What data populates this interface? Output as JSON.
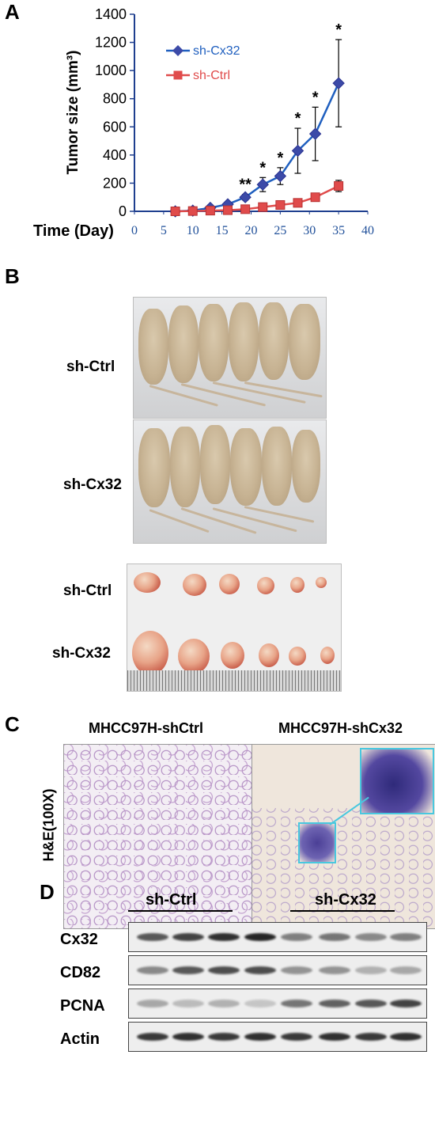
{
  "panels": {
    "a": "A",
    "b": "B",
    "c": "C",
    "d": "D"
  },
  "chart_data": {
    "type": "line",
    "ylabel": "Tumor size (mm³)",
    "xlabel": "Time (Day)",
    "xlim": [
      0,
      40
    ],
    "ylim": [
      0,
      1400
    ],
    "xticks": [
      "0",
      "5",
      "10",
      "15",
      "20",
      "25",
      "30",
      "35",
      "40"
    ],
    "yticks": [
      "0",
      "200",
      "400",
      "600",
      "800",
      "1000",
      "1200",
      "1400"
    ],
    "legend_position": "top-left",
    "x": [
      7,
      10,
      13,
      16,
      19,
      22,
      25,
      28,
      31,
      35
    ],
    "series": [
      {
        "name": "sh-Cx32",
        "color": "#1f5fbf",
        "marker": "diamond",
        "values": [
          0,
          5,
          25,
          50,
          100,
          190,
          250,
          430,
          550,
          910
        ],
        "errors": [
          0,
          3,
          8,
          12,
          20,
          50,
          60,
          160,
          190,
          310
        ]
      },
      {
        "name": "sh-Ctrl",
        "color": "#e04b4b",
        "marker": "square",
        "values": [
          0,
          2,
          5,
          8,
          15,
          30,
          45,
          60,
          100,
          180
        ],
        "errors": [
          0,
          1,
          2,
          3,
          5,
          8,
          10,
          12,
          25,
          40
        ]
      }
    ],
    "annotations": [
      {
        "x": 19,
        "text": "**"
      },
      {
        "x": 22,
        "text": "*"
      },
      {
        "x": 25,
        "text": "*"
      },
      {
        "x": 28,
        "text": "*"
      },
      {
        "x": 31,
        "text": "*"
      },
      {
        "x": 35,
        "text": "*"
      }
    ]
  },
  "panel_b": {
    "row1": "sh-Ctrl",
    "row2": "sh-Cx32",
    "row3": "sh-Ctrl",
    "row4": "sh-Cx32"
  },
  "panel_c": {
    "left_title": "MHCC97H-shCtrl",
    "right_title": "MHCC97H-shCx32",
    "stain": "H&E(100X)"
  },
  "panel_d": {
    "group1": "sh-Ctrl",
    "group2": "sh-Cx32",
    "rows": [
      "Cx32",
      "CD82",
      "PCNA",
      "Actin"
    ]
  }
}
